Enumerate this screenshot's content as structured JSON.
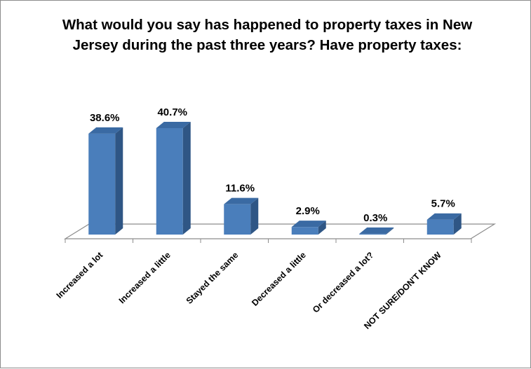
{
  "chart_data": {
    "type": "bar",
    "title": "What would you say has happened to property taxes in New Jersey during the past three years? Have property taxes:",
    "categories": [
      "Increased a lot",
      "Increased a little",
      "Stayed the same",
      "Decreased a little",
      "Or decreased a lot?",
      "NOT SURE/DON'T KNOW"
    ],
    "values": [
      38.6,
      40.7,
      11.6,
      2.9,
      0.3,
      5.7
    ],
    "data_labels": [
      "38.6%",
      "40.7%",
      "11.6%",
      "2.9%",
      "0.3%",
      "5.7%"
    ],
    "unit": "%",
    "ylim": [
      0,
      45
    ],
    "grid": false,
    "legend": "none",
    "style": "3d-column",
    "bar_color": "#4a7ebb",
    "xlabel": "",
    "ylabel": ""
  }
}
